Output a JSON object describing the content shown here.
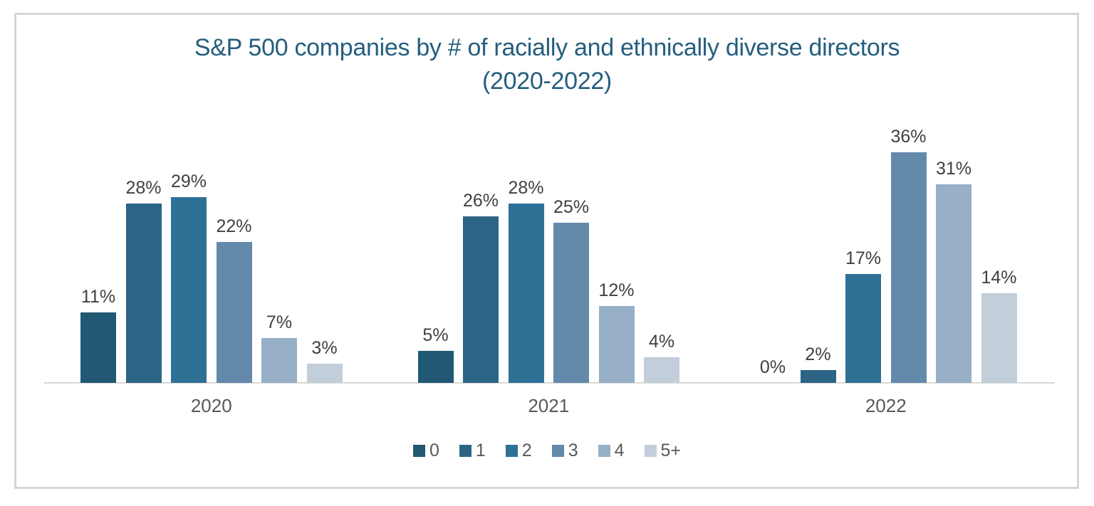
{
  "chart": {
    "title_line1": "S&P 500 companies by # of racially and ethnically diverse directors",
    "title_line2": "(2020-2022)",
    "title_color": "#255E7E",
    "label_color": "#404040",
    "axis_label_color": "#595959",
    "axis_line_color": "#D9D9D9",
    "border_color": "#D6D6D6",
    "background_color": "#FFFFFF"
  },
  "chart_data": {
    "type": "bar",
    "title": "S&P 500 companies by # of racially and ethnically diverse directors (2020-2022)",
    "categories": [
      "2020",
      "2021",
      "2022"
    ],
    "series": [
      {
        "name": "0",
        "color": "#215873",
        "values": [
          11,
          5,
          0
        ]
      },
      {
        "name": "1",
        "color": "#2C6485",
        "values": [
          28,
          26,
          2
        ]
      },
      {
        "name": "2",
        "color": "#2F7096",
        "values": [
          29,
          28,
          17
        ]
      },
      {
        "name": "3",
        "color": "#6389AB",
        "values": [
          22,
          25,
          36
        ]
      },
      {
        "name": "4",
        "color": "#97AFC7",
        "values": [
          7,
          12,
          31
        ]
      },
      {
        "name": "5+",
        "color": "#C2CEDA",
        "values": [
          3,
          4,
          14
        ]
      }
    ],
    "value_suffix": "%",
    "ylim": [
      0,
      40
    ],
    "xlabel": "",
    "ylabel": "",
    "gridlines": false,
    "data_labels": true,
    "legend_position": "bottom"
  }
}
